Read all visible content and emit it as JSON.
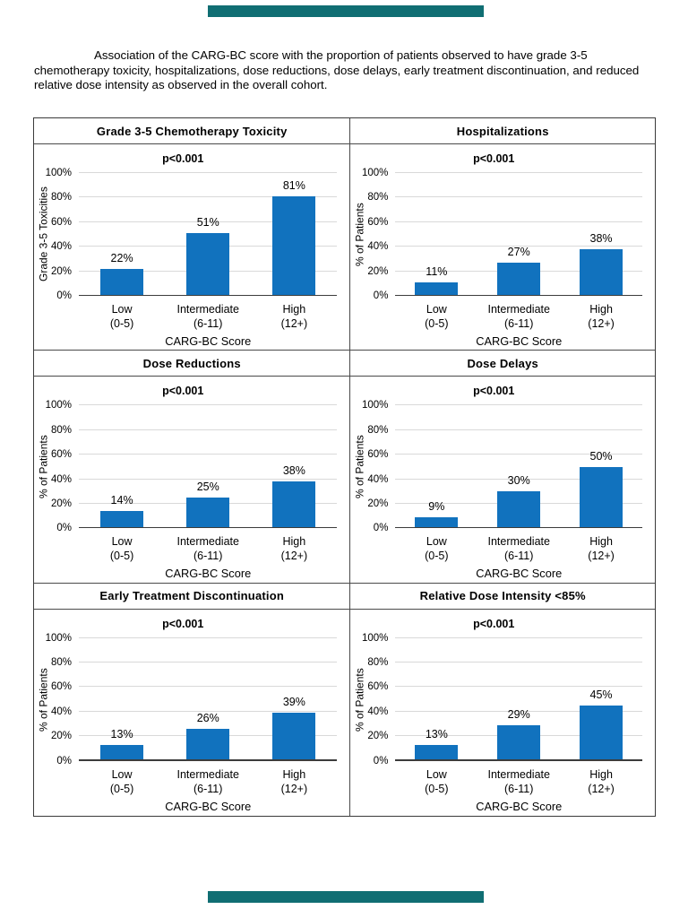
{
  "page": {
    "background_color": "#FFFFFF",
    "redaction_bar_color": "#106E73"
  },
  "caption": {
    "text": "Association of the CARG-BC score with the proportion of patients observed to have grade 3-5 chemotherapy toxicity, hospitalizations, dose reductions, dose delays, early treatment discontinuation, and reduced relative dose intensity as observed in the overall cohort."
  },
  "figure": {
    "p_value": "p<0.001",
    "x_axis_label": "CARG-BC Score",
    "categories": [
      "Low\n(0-5)",
      "Intermediate\n(6-11)",
      "High\n(12+)"
    ],
    "y_ticks": [
      "0%",
      "20%",
      "40%",
      "60%",
      "80%",
      "100%"
    ],
    "bar_color": "#1172BE",
    "gridline_color": "#D9D9D9",
    "panels": [
      {
        "title": "Grade 3-5 Chemotherapy Toxicity",
        "ylabel": "Grade 3-5 Toxicities",
        "values": [
          22,
          51,
          81
        ],
        "value_labels": [
          "22%",
          "51%",
          "81%"
        ]
      },
      {
        "title": "Hospitalizations",
        "ylabel": "% of Patients",
        "values": [
          11,
          27,
          38
        ],
        "value_labels": [
          "11%",
          "27%",
          "38%"
        ]
      },
      {
        "title": "Dose Reductions",
        "ylabel": "% of Patients",
        "values": [
          14,
          25,
          38
        ],
        "value_labels": [
          "14%",
          "25%",
          "38%"
        ]
      },
      {
        "title": "Dose Delays",
        "ylabel": "% of Patients",
        "values": [
          9,
          30,
          50
        ],
        "value_labels": [
          "9%",
          "30%",
          "50%"
        ]
      },
      {
        "title": "Early Treatment Discontinuation",
        "ylabel": "% of Patients",
        "values": [
          13,
          26,
          39
        ],
        "value_labels": [
          "13%",
          "26%",
          "39%"
        ]
      },
      {
        "title": "Relative Dose Intensity <85%",
        "ylabel": "% of Patients",
        "values": [
          13,
          29,
          45
        ],
        "value_labels": [
          "13%",
          "29%",
          "45%"
        ]
      }
    ]
  },
  "chart_data": [
    {
      "type": "bar",
      "title": "Grade 3-5 Chemotherapy Toxicity",
      "annotation": "p<0.001",
      "categories": [
        "Low (0-5)",
        "Intermediate (6-11)",
        "High (12+)"
      ],
      "values": [
        22,
        51,
        81
      ],
      "xlabel": "CARG-BC Score",
      "ylabel": "Grade 3-5 Toxicities",
      "ylim": [
        0,
        100
      ],
      "yticks": [
        0,
        20,
        40,
        60,
        80,
        100
      ],
      "ytick_format": "percent",
      "grid": true,
      "legend": false,
      "bar_color": "#1172BE"
    },
    {
      "type": "bar",
      "title": "Hospitalizations",
      "annotation": "p<0.001",
      "categories": [
        "Low (0-5)",
        "Intermediate (6-11)",
        "High (12+)"
      ],
      "values": [
        11,
        27,
        38
      ],
      "xlabel": "CARG-BC Score",
      "ylabel": "% of Patients",
      "ylim": [
        0,
        100
      ],
      "yticks": [
        0,
        20,
        40,
        60,
        80,
        100
      ],
      "ytick_format": "percent",
      "grid": true,
      "legend": false,
      "bar_color": "#1172BE"
    },
    {
      "type": "bar",
      "title": "Dose Reductions",
      "annotation": "p<0.001",
      "categories": [
        "Low (0-5)",
        "Intermediate (6-11)",
        "High (12+)"
      ],
      "values": [
        14,
        25,
        38
      ],
      "xlabel": "CARG-BC Score",
      "ylabel": "% of Patients",
      "ylim": [
        0,
        100
      ],
      "yticks": [
        0,
        20,
        40,
        60,
        80,
        100
      ],
      "ytick_format": "percent",
      "grid": true,
      "legend": false,
      "bar_color": "#1172BE"
    },
    {
      "type": "bar",
      "title": "Dose Delays",
      "annotation": "p<0.001",
      "categories": [
        "Low (0-5)",
        "Intermediate (6-11)",
        "High (12+)"
      ],
      "values": [
        9,
        30,
        50
      ],
      "xlabel": "CARG-BC Score",
      "ylabel": "% of Patients",
      "ylim": [
        0,
        100
      ],
      "yticks": [
        0,
        20,
        40,
        60,
        80,
        100
      ],
      "ytick_format": "percent",
      "grid": true,
      "legend": false,
      "bar_color": "#1172BE"
    },
    {
      "type": "bar",
      "title": "Early Treatment Discontinuation",
      "annotation": "p<0.001",
      "categories": [
        "Low (0-5)",
        "Intermediate (6-11)",
        "High (12+)"
      ],
      "values": [
        13,
        26,
        39
      ],
      "xlabel": "CARG-BC Score",
      "ylabel": "% of Patients",
      "ylim": [
        0,
        100
      ],
      "yticks": [
        0,
        20,
        40,
        60,
        80,
        100
      ],
      "ytick_format": "percent",
      "grid": true,
      "legend": false,
      "bar_color": "#1172BE"
    },
    {
      "type": "bar",
      "title": "Relative Dose Intensity <85%",
      "annotation": "p<0.001",
      "categories": [
        "Low (0-5)",
        "Intermediate (6-11)",
        "High (12+)"
      ],
      "values": [
        13,
        29,
        45
      ],
      "xlabel": "CARG-BC Score",
      "ylabel": "% of Patients",
      "ylim": [
        0,
        100
      ],
      "yticks": [
        0,
        20,
        40,
        60,
        80,
        100
      ],
      "ytick_format": "percent",
      "grid": true,
      "legend": false,
      "bar_color": "#1172BE"
    }
  ]
}
